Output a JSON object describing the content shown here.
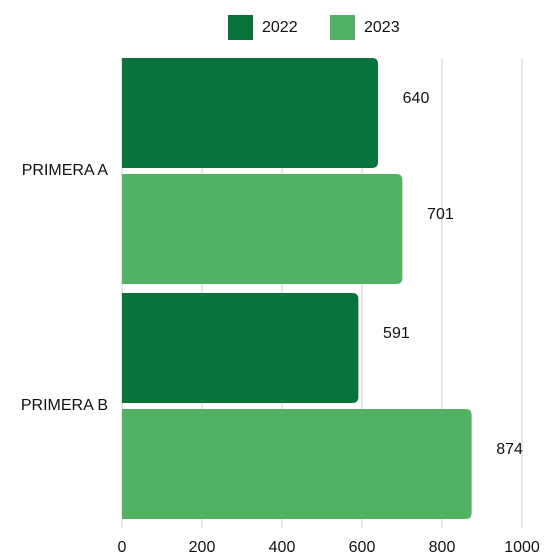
{
  "chart_data": {
    "type": "hbar",
    "categories": [
      "PRIMERA A",
      "PRIMERA B"
    ],
    "series": [
      {
        "name": "2022",
        "color": "#08743b",
        "values": [
          640,
          591
        ]
      },
      {
        "name": "2023",
        "color": "#52b263",
        "values": [
          701,
          874
        ]
      }
    ],
    "xlim": [
      0,
      1000
    ],
    "xticks": [
      0,
      200,
      400,
      600,
      800,
      1000
    ],
    "grid": true,
    "legend": "top"
  }
}
